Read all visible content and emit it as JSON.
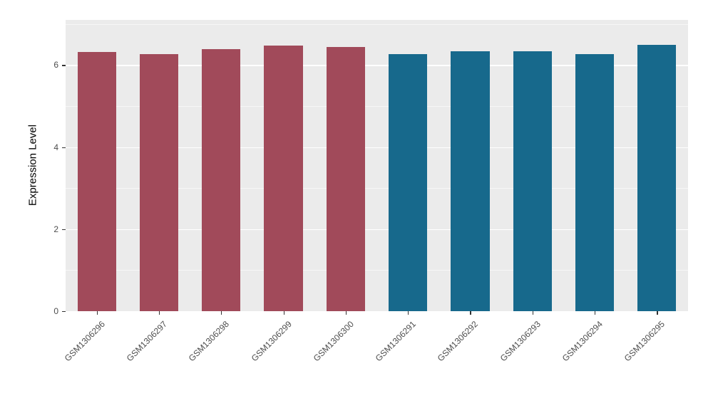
{
  "chart_data": {
    "type": "bar",
    "title": "",
    "xlabel": "",
    "ylabel": "Expression Level",
    "ylim": [
      0,
      7.1
    ],
    "yticks": [
      0,
      2,
      4,
      6
    ],
    "yticks_minor": [
      1,
      3,
      5,
      7
    ],
    "categories": [
      "GSM1306296",
      "GSM1306297",
      "GSM1306298",
      "GSM1306299",
      "GSM1306300",
      "GSM1306291",
      "GSM1306292",
      "GSM1306293",
      "GSM1306294",
      "GSM1306295"
    ],
    "values": [
      6.32,
      6.26,
      6.38,
      6.48,
      6.44,
      6.27,
      6.33,
      6.33,
      6.27,
      6.49
    ],
    "bar_colors": [
      "#A14A5A",
      "#A14A5A",
      "#A14A5A",
      "#A14A5A",
      "#A14A5A",
      "#17698C",
      "#17698C",
      "#17698C",
      "#17698C",
      "#17698C"
    ],
    "legend": "none",
    "grid": "on",
    "panel_bg": "#EBEBEB",
    "grid_color": "#FFFFFF",
    "tick_mark_color": "#333333",
    "tick_label_color": "#4D4D4D",
    "figure_bg": "#FFFFFF"
  }
}
